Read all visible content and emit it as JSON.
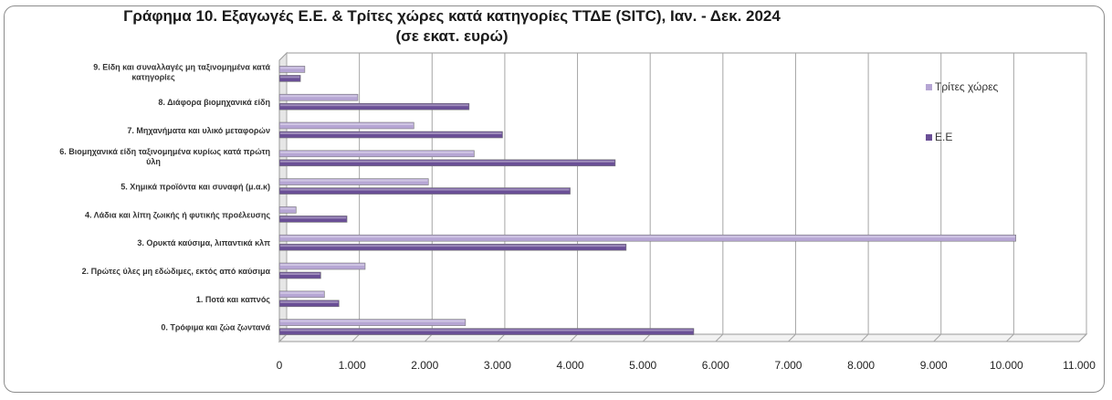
{
  "chart_data": {
    "type": "bar",
    "orientation": "horizontal",
    "title": "Γράφημα 10. Εξαγωγές  Ε.Ε. & Τρίτες χώρες κατά κατηγορίες ΤΤΔΕ (SITC), Ιαν. - Δεκ. 2024",
    "subtitle": "(σε εκατ. ευρώ)",
    "xlabel": "",
    "ylabel": "",
    "xlim": [
      0,
      11000
    ],
    "x_ticks": [
      "0",
      "1.000",
      "2.000",
      "3.000",
      "4.000",
      "5.000",
      "6.000",
      "7.000",
      "8.000",
      "9.000",
      "10.000",
      "11.000"
    ],
    "categories": [
      [
        "9. Είδη και συναλλαγές μη ταξινομημένα κατά",
        "κατηγορίες"
      ],
      [
        "8. Διάφορα βιομηχανικά είδη"
      ],
      [
        "7. Μηχανήματα και υλικό μεταφορών"
      ],
      [
        "6. Βιομηχανικά είδη ταξινομημένα κυρίως κατά πρώτη",
        "ύλη"
      ],
      [
        "5. Χημικά προϊόντα και συναφή (μ.α.κ)"
      ],
      [
        "4. Λάδια και λίπη ζωικής ή φυτικής προέλευσης"
      ],
      [
        "3. Ορυκτά καύσιμα, λιπαντικά κλπ"
      ],
      [
        "2. Πρώτες ύλες μη εδώδιμες, εκτός από καύσιμα"
      ],
      [
        "1. Ποτά και καπνός"
      ],
      [
        "0. Τρόφιμα και ζώα ζωντανά"
      ]
    ],
    "series": [
      {
        "name": "Τρίτες χώρες",
        "color": "#b6a6d4",
        "values": [
          350,
          1080,
          1850,
          2680,
          2050,
          230,
          10130,
          1180,
          620,
          2560
        ]
      },
      {
        "name": "Ε.Ε",
        "color": "#6a4f96",
        "values": [
          290,
          2610,
          3070,
          4620,
          4000,
          930,
          4770,
          570,
          820,
          5700
        ]
      }
    ],
    "grid": true,
    "legend_position": "right"
  }
}
